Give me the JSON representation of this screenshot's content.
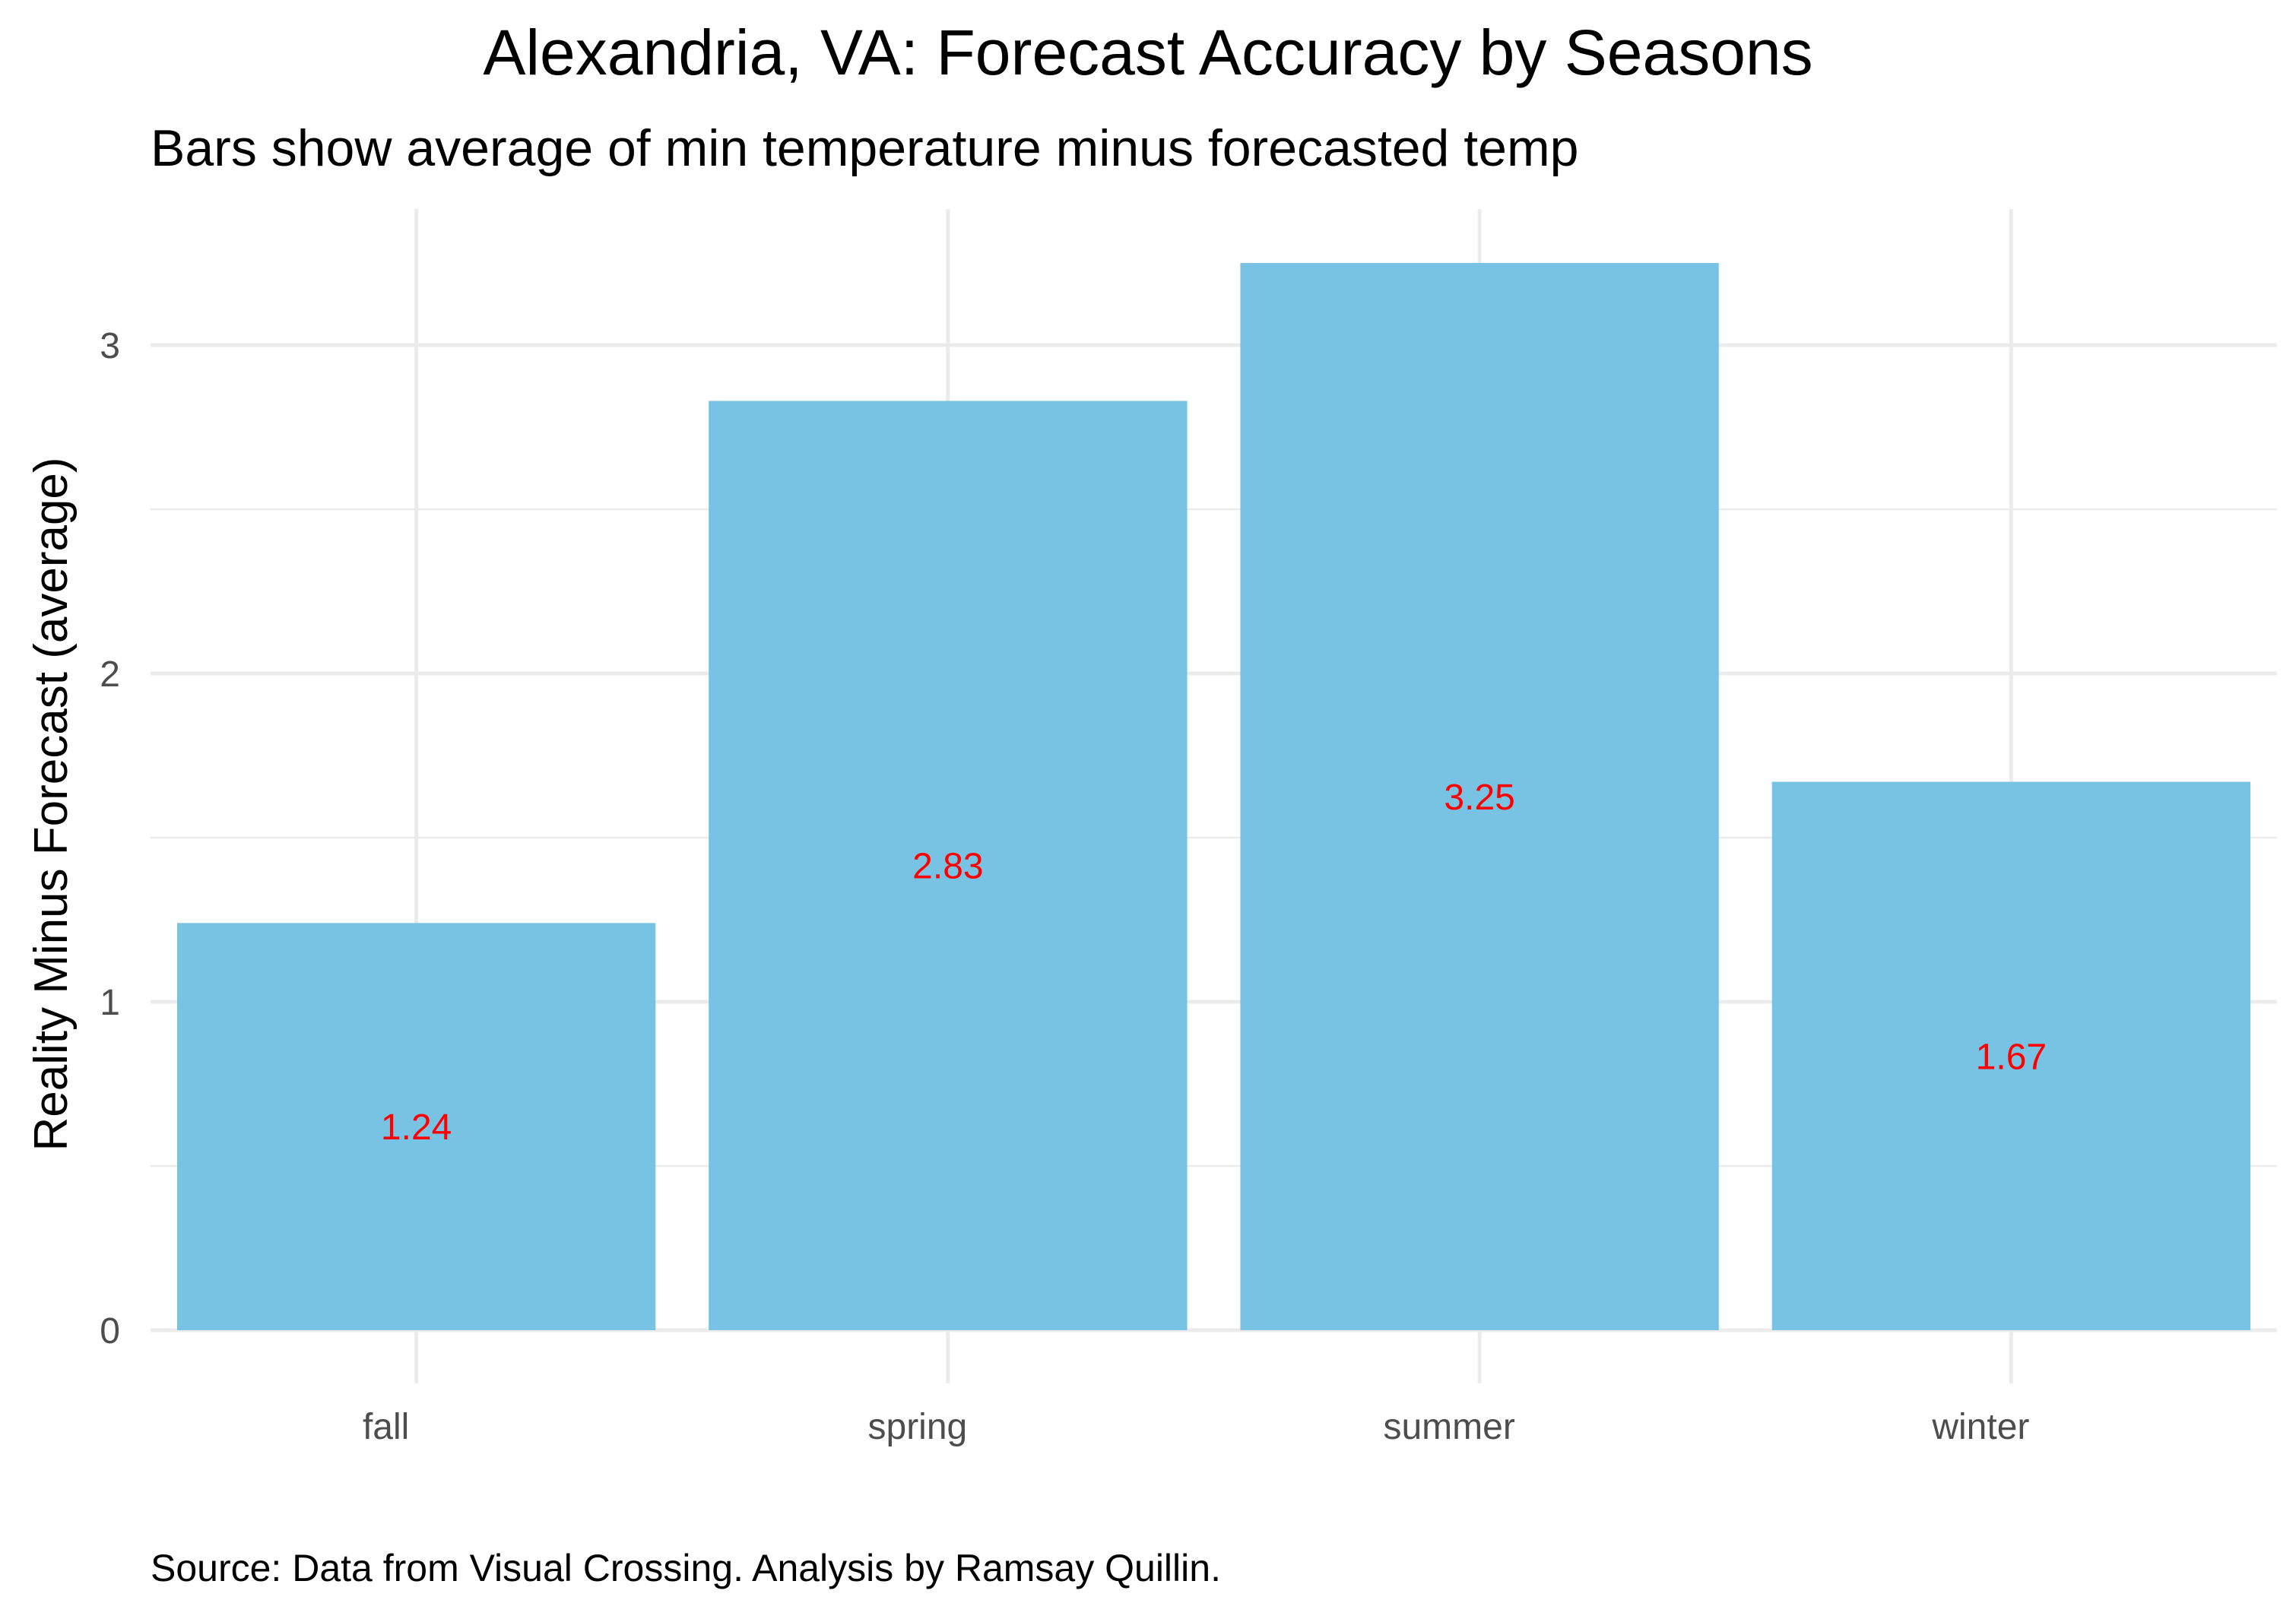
{
  "chart_data": {
    "type": "bar",
    "title": "Alexandria, VA: Forecast Accuracy by Seasons",
    "subtitle": "Bars show average of min temperature minus forecasted temp",
    "xlabel": "",
    "ylabel": "Reality Minus Forecast (average)",
    "caption": "Source: Data from Visual Crossing. Analysis by Ramsay Quillin.",
    "categories": [
      "fall",
      "spring",
      "summer",
      "winter"
    ],
    "values": [
      1.24,
      2.83,
      3.25,
      1.67
    ],
    "value_labels": [
      "1.24",
      "2.83",
      "3.25",
      "1.67"
    ],
    "ylim": [
      0,
      3.25
    ],
    "yticks": [
      0,
      1,
      2,
      3
    ],
    "ytick_labels": [
      "0",
      "1",
      "2",
      "3"
    ],
    "grid": true,
    "legend": "none",
    "bar_color": "#78c2e3",
    "label_color": "#ff0000",
    "grid_color": "#ebebeb"
  }
}
